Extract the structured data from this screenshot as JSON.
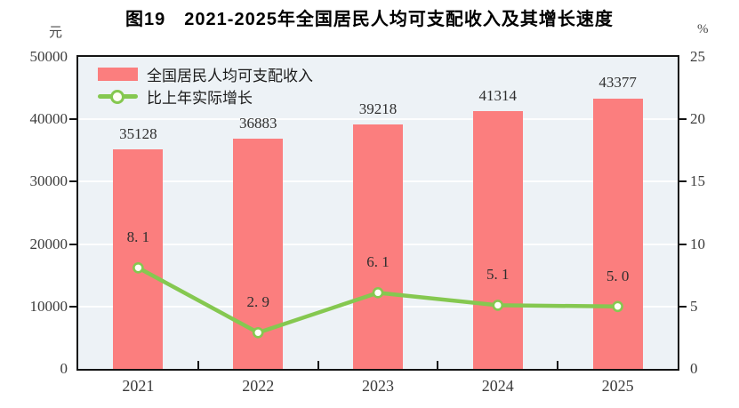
{
  "title": "图19　2021-2025年全国居民人均可支配收入及其增长速度",
  "axes": {
    "left_unit": "元",
    "right_unit": "%"
  },
  "legend": {
    "items": [
      {
        "label": "全国居民人均可支配收入",
        "marker": "bar-swatch"
      },
      {
        "label": "比上年实际增长",
        "marker": "line-marker"
      }
    ]
  },
  "colors": {
    "bar": "#fb7e7e",
    "line": "#85c850",
    "marker_fill": "#fffef8",
    "plot_bg": "#edf2f6",
    "grid": "#fdfefe",
    "axis": "#141414",
    "value_label": "#2e2e2e"
  },
  "chart_data": {
    "type": "bar+line",
    "title": "图19　2021-2025年全国居民人均可支配收入及其增长速度",
    "categories": [
      "2021",
      "2022",
      "2023",
      "2024",
      "2025"
    ],
    "series": [
      {
        "name": "全国居民人均可支配收入",
        "type": "bar",
        "axis": "left",
        "unit": "元",
        "values": [
          35128,
          36883,
          39218,
          41314,
          43377
        ],
        "labels": [
          "35128",
          "36883",
          "39218",
          "41314",
          "43377"
        ],
        "color": "#fb7e7e"
      },
      {
        "name": "比上年实际增长",
        "type": "line",
        "axis": "right",
        "unit": "%",
        "values": [
          8.1,
          2.9,
          6.1,
          5.1,
          5.0
        ],
        "labels": [
          "8. 1",
          "2. 9",
          "6. 1",
          "5. 1",
          "5. 0"
        ],
        "color": "#85c850"
      }
    ],
    "left_axis": {
      "label": "元",
      "min": 0,
      "max": 50000,
      "ticks": [
        0,
        10000,
        20000,
        30000,
        40000,
        50000
      ]
    },
    "right_axis": {
      "label": "%",
      "min": 0,
      "max": 25,
      "ticks": [
        0,
        5,
        10,
        15,
        20,
        25
      ]
    },
    "grid": "on",
    "legend_position": "top-left"
  }
}
